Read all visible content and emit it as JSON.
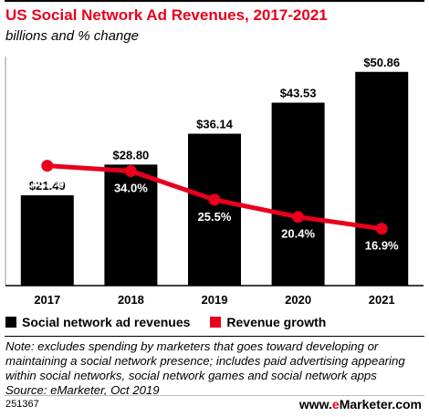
{
  "chart_data": {
    "type": "bar",
    "title": "US Social Network Ad Revenues, 2017-2021",
    "subtitle": "billions and % change",
    "categories": [
      "2017",
      "2018",
      "2019",
      "2020",
      "2021"
    ],
    "series": [
      {
        "name": "Social network ad revenues",
        "type": "bar",
        "color": "#000000",
        "values": [
          21.49,
          28.8,
          36.14,
          43.53,
          50.86
        ],
        "labels": [
          "$21.49",
          "$28.80",
          "$36.14",
          "$43.53",
          "$50.86"
        ]
      },
      {
        "name": "Revenue growth",
        "type": "line",
        "color": "#e8001c",
        "values": [
          35.6,
          34.0,
          25.5,
          20.4,
          16.9
        ],
        "labels": [
          "35.6%",
          "34.0%",
          "25.5%",
          "20.4%",
          "16.9%"
        ]
      }
    ],
    "ylim": [
      0,
      54.5
    ],
    "line_ylim": [
      0,
      68
    ]
  },
  "notes": {
    "line1": "Note: excludes spending by marketers that goes toward developing or",
    "line2": "maintaining a social network presence; includes paid advertising appearing",
    "line3": "within social networks, social network games and social network apps",
    "source": "Source: eMarketer, Oct 2019"
  },
  "footer": {
    "chart_id": "251367",
    "brand_prefix": "www.",
    "brand_accent": "e",
    "brand_suffix": "Marketer.com"
  }
}
